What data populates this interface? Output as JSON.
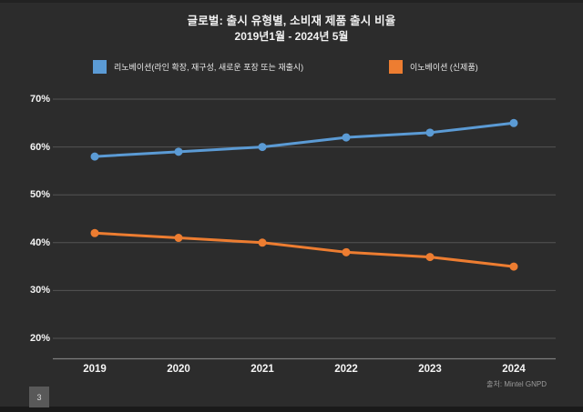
{
  "title": {
    "line1": "글로벌: 출시 유형별, 소비재 제품 출시 비율",
    "line2": "2019년1월 - 2024년 5월"
  },
  "footer": {
    "source": "출처: Mintel GNPD",
    "page_number": "3"
  },
  "colors": {
    "background": "#2c2c2c",
    "renovation_blue": "#5b9bd5",
    "innovation_orange": "#ed7d31",
    "gridline": "#545454",
    "axis_line": "#7d7d7d",
    "text": "#f2f2f2"
  },
  "chart_data": {
    "type": "line",
    "title": "글로벌: 출시 유형별, 소비재 제품 출시 비율 2019년1월 - 2024년 5월",
    "categories": [
      "2019",
      "2020",
      "2021",
      "2022",
      "2023",
      "2024"
    ],
    "series": [
      {
        "name": "리노베이션(라인 확장, 재구성, 새로운 포장 또는 재출시)",
        "color": "#5b9bd5",
        "values": [
          58,
          59,
          60,
          62,
          63,
          65
        ]
      },
      {
        "name": "이노베이션 (신제품)",
        "color": "#ed7d31",
        "values": [
          42,
          41,
          40,
          38,
          37,
          35
        ]
      }
    ],
    "xlabel": "",
    "ylabel": "",
    "ylim": [
      20,
      70
    ],
    "y_ticks": [
      70,
      60,
      50,
      40,
      30,
      20
    ],
    "y_tick_labels": [
      "70%",
      "60%",
      "50%",
      "40%",
      "30%",
      "20%"
    ],
    "unit": "%",
    "grid": "horizontal",
    "legend_position": "top",
    "markers": "circle"
  }
}
